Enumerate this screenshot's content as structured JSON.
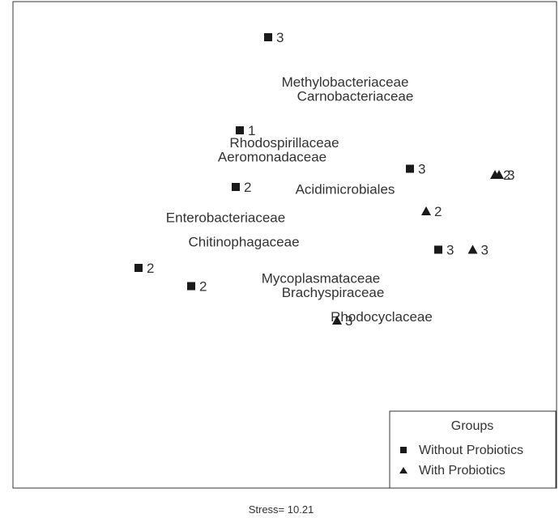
{
  "chart_data": {
    "type": "scatter",
    "title": "",
    "xlabel": "",
    "ylabel": "",
    "footer": "Stress= 10.21",
    "grid": false,
    "axes_shown": false,
    "legend_placement": "bottom-right",
    "legend": {
      "title": "Groups",
      "entries": [
        {
          "label": "Without Probiotics",
          "marker": "square"
        },
        {
          "label": "With Probiotics",
          "marker": "triangle"
        }
      ]
    },
    "series": [
      {
        "name": "Without Probiotics",
        "marker": "square",
        "points": [
          {
            "x": -0.08,
            "y": 0.88,
            "label": "3"
          },
          {
            "x": -0.22,
            "y": 0.42,
            "label": "1"
          },
          {
            "x": -0.24,
            "y": 0.14,
            "label": "2"
          },
          {
            "x": 0.62,
            "y": 0.23,
            "label": "3"
          },
          {
            "x": 0.76,
            "y": -0.17,
            "label": "3"
          },
          {
            "x": -0.72,
            "y": -0.26,
            "label": "2"
          },
          {
            "x": -0.46,
            "y": -0.35,
            "label": "2"
          }
        ]
      },
      {
        "name": "With Probiotics",
        "marker": "triangle",
        "points": [
          {
            "x": 1.04,
            "y": 0.2,
            "label": "2"
          },
          {
            "x": 1.06,
            "y": 0.2,
            "label": "3"
          },
          {
            "x": 0.7,
            "y": 0.02,
            "label": "2"
          },
          {
            "x": 0.93,
            "y": -0.17,
            "label": "3"
          },
          {
            "x": 0.26,
            "y": -0.52,
            "label": "3"
          }
        ]
      }
    ],
    "taxa": [
      {
        "label": "Methylobacteriaceae",
        "x": 0.3,
        "y": 0.66
      },
      {
        "label": "Carnobacteriaceae",
        "x": 0.35,
        "y": 0.59
      },
      {
        "label": "Rhodospirillaceae",
        "x": 0.0,
        "y": 0.36
      },
      {
        "label": "Aeromonadaceae",
        "x": -0.06,
        "y": 0.29
      },
      {
        "label": "Acidimicrobiales",
        "x": 0.3,
        "y": 0.13
      },
      {
        "label": "Enterobacteriaceae",
        "x": -0.29,
        "y": -0.01
      },
      {
        "label": "Chitinophagaceae",
        "x": -0.2,
        "y": -0.13
      },
      {
        "label": "Mycoplasmataceae",
        "x": 0.18,
        "y": -0.31
      },
      {
        "label": "Brachyspiraceae",
        "x": 0.24,
        "y": -0.38
      },
      {
        "label": "Rhodocyclaceae",
        "x": 0.48,
        "y": -0.5
      }
    ]
  }
}
